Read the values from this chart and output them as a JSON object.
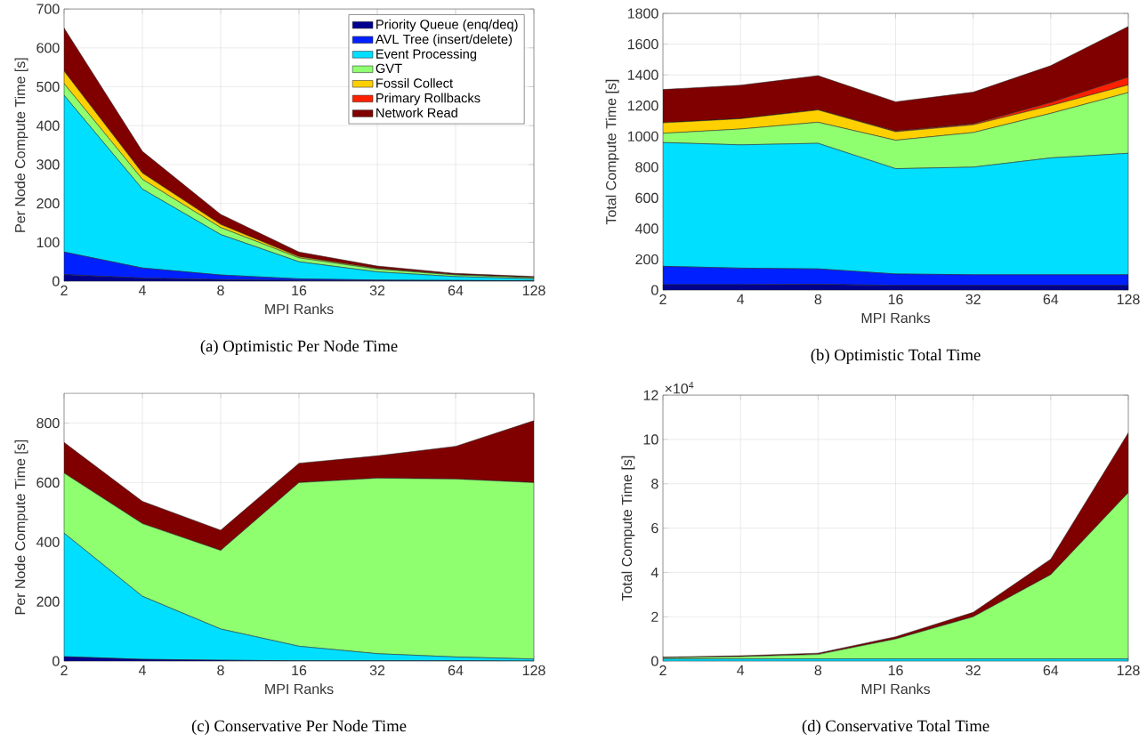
{
  "chart_data": [
    {
      "type": "area",
      "stacked": true,
      "title": "(a) Optimistic Per Node Time",
      "xlabel": "MPI Ranks",
      "ylabel": "Per Node Compute Time [s]",
      "x": [
        2,
        4,
        8,
        16,
        32,
        64,
        128
      ],
      "xlim": [
        2,
        128
      ],
      "xticks": [
        2,
        4,
        8,
        16,
        32,
        64,
        128
      ],
      "log": "x",
      "ylim": [
        0,
        700
      ],
      "yticks": [
        0,
        100,
        200,
        300,
        400,
        500,
        600,
        700
      ],
      "grid": true,
      "legend": "top right",
      "series": [
        {
          "name": "Priority Queue (enq/deq)",
          "color": "#00008f",
          "values": [
            17,
            8,
            4,
            2,
            1,
            1,
            0
          ]
        },
        {
          "name": "AVL Tree (insert/delete)",
          "color": "#0020ff",
          "values": [
            58,
            26,
            12,
            4,
            2,
            1,
            1
          ]
        },
        {
          "name": "Event Processing",
          "color": "#00dfff",
          "values": [
            403,
            203,
            104,
            44,
            21,
            10,
            5
          ]
        },
        {
          "name": "GVT",
          "color": "#8fff70",
          "values": [
            30,
            25,
            18,
            10,
            7,
            4,
            3
          ]
        },
        {
          "name": "Fossil Collect",
          "color": "#ffd000",
          "values": [
            32,
            16,
            8,
            3,
            2,
            1,
            1
          ]
        },
        {
          "name": "Primary Rollbacks",
          "color": "#ff2000",
          "values": [
            null,
            null,
            null,
            null,
            null,
            null,
            null
          ]
        },
        {
          "name": "Network Read",
          "color": "#800000",
          "values": [
            111,
            56,
            26,
            12,
            6,
            3,
            2
          ]
        }
      ]
    },
    {
      "type": "area",
      "stacked": true,
      "title": "(b) Optimistic Total Time",
      "xlabel": "MPI Ranks",
      "ylabel": "Total Compute Time [s]",
      "x": [
        2,
        4,
        8,
        16,
        32,
        64,
        128
      ],
      "xlim": [
        2,
        128
      ],
      "xticks": [
        2,
        4,
        8,
        16,
        32,
        64,
        128
      ],
      "log": "x",
      "ylim": [
        0,
        1800
      ],
      "yticks": [
        0,
        200,
        400,
        600,
        800,
        1000,
        1200,
        1400,
        1600,
        1800
      ],
      "grid": true,
      "series": [
        {
          "color": "#00008f",
          "values": [
            35,
            35,
            38,
            30,
            30,
            30,
            30
          ]
        },
        {
          "color": "#0020ff",
          "values": [
            120,
            108,
            100,
            75,
            70,
            70,
            70
          ]
        },
        {
          "color": "#00dfff",
          "values": [
            805,
            802,
            817,
            685,
            700,
            760,
            790
          ]
        },
        {
          "color": "#8fff70",
          "values": [
            60,
            103,
            137,
            185,
            225,
            290,
            395
          ]
        },
        {
          "color": "#ffd000",
          "values": [
            68,
            67,
            80,
            55,
            50,
            50,
            50
          ]
        },
        {
          "color": "#ff2000",
          "values": [
            0,
            0,
            0,
            5,
            7,
            20,
            50
          ]
        },
        {
          "color": "#800000",
          "values": [
            217,
            218,
            223,
            190,
            206,
            240,
            330
          ]
        }
      ]
    },
    {
      "type": "area",
      "stacked": true,
      "title": "(c) Conservative Per Node Time",
      "xlabel": "MPI Ranks",
      "ylabel": "Per Node Compute Time [s]",
      "x": [
        2,
        4,
        8,
        16,
        32,
        64,
        128
      ],
      "xlim": [
        2,
        128
      ],
      "xticks": [
        2,
        4,
        8,
        16,
        32,
        64,
        128
      ],
      "log": "x",
      "ylim": [
        0,
        900
      ],
      "yticks": [
        0,
        200,
        400,
        600,
        800
      ],
      "grid": true,
      "series": [
        {
          "color": "#00008f",
          "values": [
            15,
            6,
            3,
            1,
            1,
            1,
            0
          ]
        },
        {
          "color": "#00dfff",
          "values": [
            415,
            212,
            105,
            49,
            24,
            13,
            7
          ]
        },
        {
          "color": "#8fff70",
          "values": [
            202,
            244,
            264,
            550,
            590,
            598,
            593
          ]
        },
        {
          "color": "#800000",
          "values": [
            103,
            75,
            68,
            65,
            75,
            110,
            208
          ]
        }
      ]
    },
    {
      "type": "area",
      "stacked": true,
      "title": "(d) Conservative Total Time",
      "xlabel": "MPI Ranks",
      "ylabel": "Total Compute Time [s]",
      "x": [
        2,
        4,
        8,
        16,
        32,
        64,
        128
      ],
      "xlim": [
        2,
        128
      ],
      "xticks": [
        2,
        4,
        8,
        16,
        32,
        64,
        128
      ],
      "log": "x",
      "ylim": [
        0,
        12
      ],
      "yticks": [
        0,
        2,
        4,
        6,
        8,
        10,
        12
      ],
      "grid": true,
      "annotations": [
        "×10$^{4}$"
      ],
      "series": [
        {
          "color": "#00dfff",
          "values": [
            0.1,
            0.1,
            0.1,
            0.1,
            0.1,
            0.1,
            0.1
          ]
        },
        {
          "color": "#8fff70",
          "values": [
            0.05,
            0.1,
            0.2,
            0.9,
            1.9,
            3.8,
            7.5
          ]
        },
        {
          "color": "#800000",
          "values": [
            0.03,
            0.04,
            0.06,
            0.1,
            0.2,
            0.7,
            2.7
          ]
        }
      ]
    }
  ]
}
